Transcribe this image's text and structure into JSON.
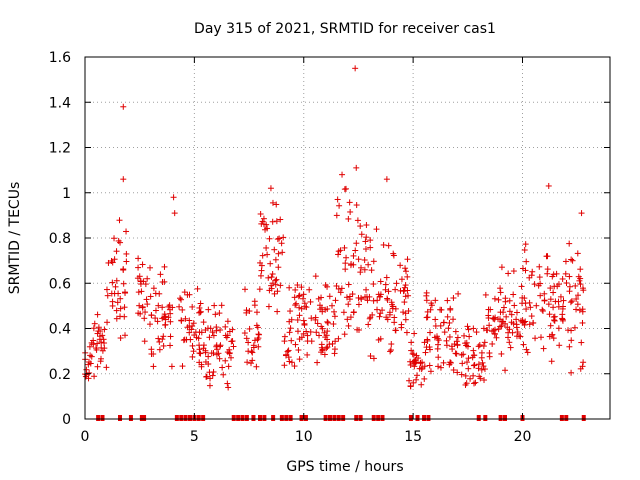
{
  "chart_data": {
    "type": "scatter",
    "title": "Day 315 of 2021, SRMTID for receiver cas1",
    "xlabel": "GPS time / hours",
    "ylabel": "SRMTID / TECUs",
    "xlim": [
      0,
      24
    ],
    "ylim": [
      0,
      1.6
    ],
    "xticks": [
      "0",
      "5",
      "10",
      "15",
      "20"
    ],
    "xtick_values": [
      0,
      5,
      10,
      15,
      20
    ],
    "yticks": [
      "0",
      "0.2",
      "0.4",
      "0.6",
      "0.8",
      "1",
      "1.2",
      "1.4",
      "1.6"
    ],
    "ytick_values": [
      0,
      0.2,
      0.4,
      0.6,
      0.8,
      1.0,
      1.2,
      1.4,
      1.6
    ],
    "grid": true,
    "marker": "+",
    "color": "#e00000",
    "clusters": [
      {
        "t0": 0.0,
        "t1": 0.35,
        "lo": 0.12,
        "hi": 0.35
      },
      {
        "t0": 0.35,
        "t1": 1.0,
        "lo": 0.15,
        "hi": 0.5
      },
      {
        "t0": 1.0,
        "t1": 1.9,
        "lo": 0.3,
        "hi": 0.9
      },
      {
        "t0": 2.4,
        "t1": 3.0,
        "lo": 0.3,
        "hi": 0.75
      },
      {
        "t0": 3.0,
        "t1": 4.0,
        "lo": 0.2,
        "hi": 0.7
      },
      {
        "t0": 4.3,
        "t1": 5.3,
        "lo": 0.2,
        "hi": 0.6
      },
      {
        "t0": 5.3,
        "t1": 6.8,
        "lo": 0.1,
        "hi": 0.55
      },
      {
        "t0": 7.3,
        "t1": 8.0,
        "lo": 0.12,
        "hi": 0.6
      },
      {
        "t0": 8.0,
        "t1": 9.1,
        "lo": 0.4,
        "hi": 1.0
      },
      {
        "t0": 9.1,
        "t1": 10.3,
        "lo": 0.2,
        "hi": 0.7
      },
      {
        "t0": 10.3,
        "t1": 11.5,
        "lo": 0.15,
        "hi": 0.65
      },
      {
        "t0": 11.5,
        "t1": 13.0,
        "lo": 0.3,
        "hi": 1.05
      },
      {
        "t0": 13.0,
        "t1": 14.2,
        "lo": 0.25,
        "hi": 0.85
      },
      {
        "t0": 14.2,
        "t1": 14.8,
        "lo": 0.3,
        "hi": 0.75
      },
      {
        "t0": 14.8,
        "t1": 15.6,
        "lo": 0.1,
        "hi": 0.4
      },
      {
        "t0": 15.6,
        "t1": 17.1,
        "lo": 0.15,
        "hi": 0.6
      },
      {
        "t0": 17.2,
        "t1": 18.3,
        "lo": 0.08,
        "hi": 0.45
      },
      {
        "t0": 18.3,
        "t1": 20.0,
        "lo": 0.2,
        "hi": 0.7
      },
      {
        "t0": 20.0,
        "t1": 21.5,
        "lo": 0.2,
        "hi": 0.8
      },
      {
        "t0": 21.5,
        "t1": 22.8,
        "lo": 0.15,
        "hi": 0.8
      }
    ],
    "outliers": [
      {
        "x": 1.75,
        "y": 1.38
      },
      {
        "x": 1.75,
        "y": 1.06
      },
      {
        "x": 4.05,
        "y": 0.98
      },
      {
        "x": 4.1,
        "y": 0.91
      },
      {
        "x": 8.5,
        "y": 1.02
      },
      {
        "x": 11.75,
        "y": 1.08
      },
      {
        "x": 12.35,
        "y": 1.55
      },
      {
        "x": 12.4,
        "y": 1.11
      },
      {
        "x": 13.8,
        "y": 1.06
      },
      {
        "x": 21.2,
        "y": 1.03
      },
      {
        "x": 22.7,
        "y": 0.91
      }
    ],
    "data_gaps_y0": [
      0.6,
      0.8,
      1.6,
      2.1,
      2.6,
      2.7,
      4.2,
      4.4,
      4.6,
      4.8,
      5.0,
      5.2,
      5.4,
      6.8,
      7.0,
      7.2,
      7.4,
      7.7,
      8.0,
      8.2,
      8.6,
      9.0,
      9.2,
      9.4,
      9.9,
      10.1,
      11.0,
      11.2,
      11.4,
      11.6,
      11.8,
      12.4,
      12.6,
      13.2,
      13.4,
      13.6,
      14.9,
      15.2,
      15.5,
      15.7,
      18.0,
      18.3,
      19.0,
      19.2,
      20.0,
      21.8,
      22.0,
      22.8
    ]
  }
}
